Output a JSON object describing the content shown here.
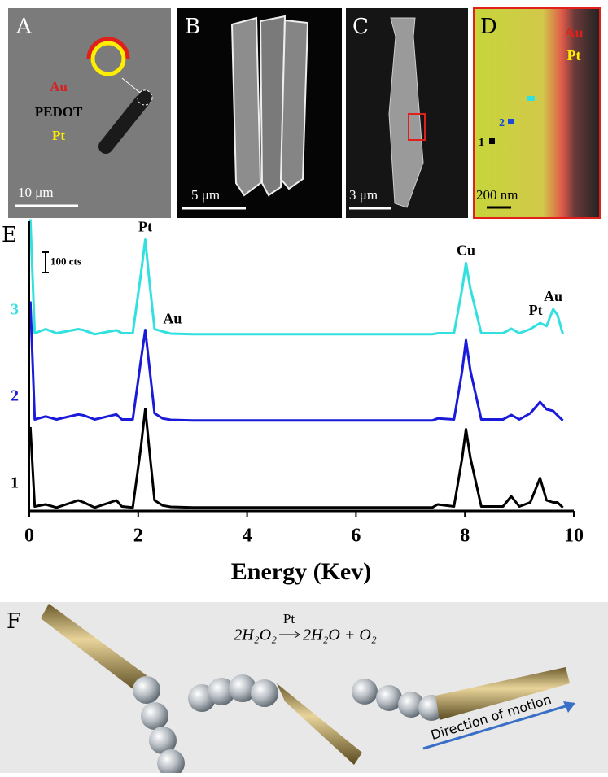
{
  "panels": {
    "A": {
      "label": "A",
      "materials": [
        "Au",
        "PEDOT",
        "Pt"
      ],
      "scale": "10 μm"
    },
    "B": {
      "label": "B",
      "scale": "5 μm"
    },
    "C": {
      "label": "C",
      "scale": "3 μm"
    },
    "D": {
      "label": "D",
      "elements": [
        "Au",
        "Pt"
      ],
      "points": [
        "1",
        "2"
      ],
      "scale": "200 nm"
    }
  },
  "chart_data": {
    "type": "line",
    "panel_label": "E",
    "xlabel": "Energy (Kev)",
    "x": [
      0.02,
      0.1,
      0.3,
      0.5,
      0.9,
      1.0,
      1.2,
      1.6,
      1.7,
      1.9,
      2.05,
      2.13,
      2.2,
      2.3,
      2.45,
      2.6,
      3,
      4,
      5,
      6,
      7,
      7.4,
      7.5,
      7.8,
      7.95,
      8.02,
      8.1,
      8.3,
      8.7,
      8.85,
      9.0,
      9.2,
      9.38,
      9.5,
      9.62,
      9.7,
      9.8
    ],
    "series": [
      {
        "name": "1",
        "color": "#000000",
        "values": [
          400,
          10,
          20,
          5,
          40,
          30,
          5,
          40,
          10,
          5,
          300,
          490,
          300,
          40,
          15,
          8,
          5,
          5,
          5,
          5,
          5,
          5,
          20,
          10,
          250,
          390,
          250,
          10,
          10,
          60,
          10,
          30,
          150,
          40,
          30,
          30,
          5
        ]
      },
      {
        "name": "2",
        "color": "#1a1adb",
        "values": [
          590,
          10,
          25,
          10,
          35,
          30,
          10,
          35,
          10,
          10,
          300,
          450,
          280,
          40,
          15,
          8,
          5,
          5,
          5,
          5,
          5,
          5,
          15,
          10,
          250,
          400,
          250,
          10,
          10,
          32,
          10,
          40,
          96,
          60,
          52,
          30,
          5
        ]
      },
      {
        "name": "3",
        "color": "#33e0e0",
        "values": [
          570,
          10,
          30,
          10,
          30,
          25,
          5,
          25,
          10,
          10,
          300,
          470,
          280,
          30,
          18,
          8,
          5,
          5,
          5,
          5,
          5,
          5,
          10,
          10,
          230,
          355,
          230,
          10,
          10,
          32,
          10,
          30,
          60,
          45,
          128,
          100,
          5
        ]
      }
    ],
    "xlim": [
      0,
      10
    ],
    "xticks": [
      0,
      2,
      4,
      6,
      8,
      10
    ],
    "scale_bar": {
      "value": 100,
      "label": "100 cts"
    },
    "annotations": [
      {
        "text": "Pt",
        "x": 2.13
      },
      {
        "text": "Au",
        "x": 2.45
      },
      {
        "text": "Cu",
        "x": 8.02
      },
      {
        "text": "Pt",
        "x": 9.3
      },
      {
        "text": "Au",
        "x": 9.62
      }
    ]
  },
  "scheme": {
    "label": "F",
    "equation": {
      "left": "2H₂O₂",
      "catalyst": "Pt",
      "right": "2H₂O + O₂"
    },
    "arrow_label": "Direction of motion"
  }
}
